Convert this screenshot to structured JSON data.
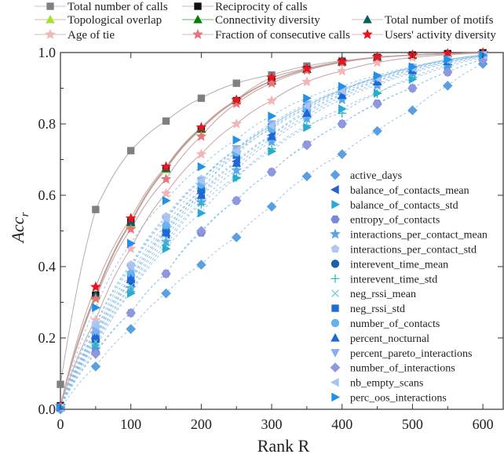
{
  "chart_data": {
    "type": "scatter",
    "title": "",
    "xlabel": "Rank R",
    "ylabel": "Acc_r",
    "xlim": [
      0,
      630
    ],
    "ylim": [
      0,
      1.0
    ],
    "x_ticks": [
      0,
      100,
      200,
      300,
      400,
      500,
      600
    ],
    "y_ticks": [
      0.0,
      0.2,
      0.4,
      0.6,
      0.8,
      1.0
    ],
    "x_tick_labels": [
      "0",
      "100",
      "200",
      "300",
      "400",
      "500",
      "600"
    ],
    "y_tick_labels": [
      "0.0",
      "0.2",
      "0.4",
      "0.6",
      "0.8",
      "1.0"
    ],
    "x": [
      0,
      50,
      100,
      150,
      200,
      250,
      300,
      350,
      400,
      450,
      500,
      550,
      600
    ],
    "top_legend": {
      "row1": [
        "Total number of calls",
        "Reciprocity of calls"
      ],
      "row2": [
        "Topological overlap",
        "Connectivity diversity",
        "Total number of motifs"
      ],
      "row3": [
        "Age of tie",
        "Fraction of consecutive calls",
        "Users' activity diversity"
      ]
    },
    "series": [
      {
        "name": "Total number of calls",
        "marker": "square",
        "color": "#808080",
        "values": [
          0.07,
          0.56,
          0.725,
          0.808,
          0.872,
          0.914,
          0.937,
          0.962,
          0.977,
          0.986,
          0.992,
          0.996,
          0.999
        ]
      },
      {
        "name": "Reciprocity of calls",
        "marker": "square",
        "color": "#111111",
        "values": [
          0.01,
          0.32,
          0.525,
          0.675,
          0.785,
          0.865,
          0.92,
          0.952,
          0.973,
          0.986,
          0.993,
          0.997,
          0.999
        ]
      },
      {
        "name": "Topological overlap",
        "marker": "triangle-up",
        "color": "#a8e02a",
        "values": [
          0.01,
          0.315,
          0.52,
          0.672,
          0.784,
          0.864,
          0.92,
          0.952,
          0.973,
          0.986,
          0.993,
          0.997,
          0.999
        ]
      },
      {
        "name": "Connectivity diversity",
        "marker": "triangle-up",
        "color": "#008000",
        "values": [
          0.01,
          0.32,
          0.524,
          0.676,
          0.787,
          0.867,
          0.921,
          0.953,
          0.974,
          0.987,
          0.993,
          0.997,
          0.999
        ]
      },
      {
        "name": "Total number of motifs",
        "marker": "triangle-up",
        "color": "#006060",
        "values": [
          0.01,
          0.32,
          0.524,
          0.675,
          0.786,
          0.866,
          0.921,
          0.953,
          0.974,
          0.987,
          0.993,
          0.997,
          0.999
        ]
      },
      {
        "name": "Age of tie",
        "marker": "star",
        "color": "#f2b6b6",
        "values": [
          0.01,
          0.25,
          0.45,
          0.605,
          0.715,
          0.8,
          0.865,
          0.918,
          0.948,
          0.972,
          0.986,
          0.994,
          0.998
        ]
      },
      {
        "name": "Fraction of consecutive calls",
        "marker": "star",
        "color": "#e8737a",
        "values": [
          0.01,
          0.31,
          0.505,
          0.645,
          0.765,
          0.857,
          0.914,
          0.95,
          0.972,
          0.986,
          0.993,
          0.997,
          0.999
        ]
      },
      {
        "name": "Users' activity diversity",
        "marker": "star",
        "color": "#e8141e",
        "values": [
          0.01,
          0.343,
          0.535,
          0.68,
          0.79,
          0.867,
          0.93,
          0.955,
          0.975,
          0.988,
          0.993,
          0.997,
          0.999
        ]
      },
      {
        "name": "active_days",
        "marker": "diamond",
        "color": "#5aa0e0",
        "values": [
          0.0,
          0.12,
          0.225,
          0.325,
          0.405,
          0.482,
          0.568,
          0.653,
          0.715,
          0.78,
          0.838,
          0.907,
          0.968
        ]
      },
      {
        "name": "balance_of_contacts_mean",
        "marker": "triangle-left",
        "color": "#2a5fcf",
        "values": [
          0.005,
          0.2,
          0.355,
          0.49,
          0.605,
          0.695,
          0.768,
          0.835,
          0.883,
          0.92,
          0.951,
          0.975,
          0.99
        ]
      },
      {
        "name": "balance_of_contacts_std",
        "marker": "triangle-right",
        "color": "#2aa8d8",
        "values": [
          0.005,
          0.17,
          0.325,
          0.45,
          0.55,
          0.648,
          0.723,
          0.79,
          0.842,
          0.886,
          0.925,
          0.96,
          0.985
        ]
      },
      {
        "name": "entropy_of_contacts",
        "marker": "hexagon",
        "color": "#7a86d8",
        "values": [
          0.005,
          0.16,
          0.27,
          0.38,
          0.495,
          0.585,
          0.665,
          0.742,
          0.8,
          0.857,
          0.9,
          0.945,
          0.98
        ]
      },
      {
        "name": "interactions_per_contact_mean",
        "marker": "star",
        "color": "#5aa6e8",
        "values": [
          0.005,
          0.185,
          0.34,
          0.47,
          0.58,
          0.67,
          0.75,
          0.815,
          0.868,
          0.908,
          0.942,
          0.97,
          0.99
        ]
      },
      {
        "name": "interactions_per_contact_std",
        "marker": "pentagon",
        "color": "#b0c8ee",
        "values": [
          0.005,
          0.24,
          0.405,
          0.54,
          0.645,
          0.728,
          0.795,
          0.85,
          0.893,
          0.928,
          0.957,
          0.979,
          0.993
        ]
      },
      {
        "name": "interevent_time_mean",
        "marker": "circle",
        "color": "#1a5fa8",
        "values": [
          0.005,
          0.195,
          0.36,
          0.5,
          0.612,
          0.72,
          0.795,
          0.85,
          0.895,
          0.93,
          0.958,
          0.98,
          0.993
        ]
      },
      {
        "name": "interevent_time_std",
        "marker": "plus",
        "color": "#1cb8b8",
        "values": [
          0.005,
          0.18,
          0.33,
          0.46,
          0.575,
          0.65,
          0.73,
          0.795,
          0.83,
          0.885,
          0.93,
          0.965,
          0.988
        ]
      },
      {
        "name": "neg_rssi_mean",
        "marker": "x",
        "color": "#6cc8e0",
        "values": [
          0.005,
          0.19,
          0.345,
          0.48,
          0.595,
          0.68,
          0.758,
          0.822,
          0.875,
          0.912,
          0.946,
          0.973,
          0.991
        ]
      },
      {
        "name": "neg_rssi_std",
        "marker": "square",
        "color": "#1f6fd0",
        "values": [
          0.005,
          0.21,
          0.37,
          0.505,
          0.615,
          0.712,
          0.79,
          0.845,
          0.892,
          0.928,
          0.957,
          0.98,
          0.993
        ]
      },
      {
        "name": "number_of_contacts",
        "marker": "circle",
        "color": "#62b4f0",
        "values": [
          0.005,
          0.215,
          0.38,
          0.515,
          0.63,
          0.72,
          0.785,
          0.842,
          0.888,
          0.924,
          0.954,
          0.978,
          0.992
        ]
      },
      {
        "name": "percent_nocturnal",
        "marker": "triangle-up",
        "color": "#2066d8",
        "values": [
          0.005,
          0.205,
          0.365,
          0.495,
          0.6,
          0.69,
          0.765,
          0.83,
          0.88,
          0.918,
          0.95,
          0.975,
          0.99
        ]
      },
      {
        "name": "percent_pareto_interactions",
        "marker": "triangle-down",
        "color": "#88aef0",
        "values": [
          0.005,
          0.22,
          0.395,
          0.53,
          0.64,
          0.73,
          0.8,
          0.855,
          0.896,
          0.93,
          0.958,
          0.98,
          0.993
        ]
      },
      {
        "name": "number_of_interactions",
        "marker": "diamond",
        "color": "#8e98e0",
        "values": [
          0.005,
          0.155,
          0.27,
          0.38,
          0.5,
          0.585,
          0.665,
          0.74,
          0.8,
          0.855,
          0.9,
          0.945,
          0.98
        ]
      },
      {
        "name": "nb_empty_scans",
        "marker": "triangle-left",
        "color": "#a8c4f0",
        "values": [
          0.005,
          0.235,
          0.4,
          0.535,
          0.64,
          0.725,
          0.795,
          0.85,
          0.893,
          0.928,
          0.957,
          0.979,
          0.993
        ]
      },
      {
        "name": "perc_oos_interactions",
        "marker": "triangle-right",
        "color": "#2090e8",
        "values": [
          0.005,
          0.285,
          0.465,
          0.585,
          0.68,
          0.755,
          0.822,
          0.872,
          0.905,
          0.935,
          0.96,
          0.98,
          0.993
        ]
      }
    ]
  }
}
